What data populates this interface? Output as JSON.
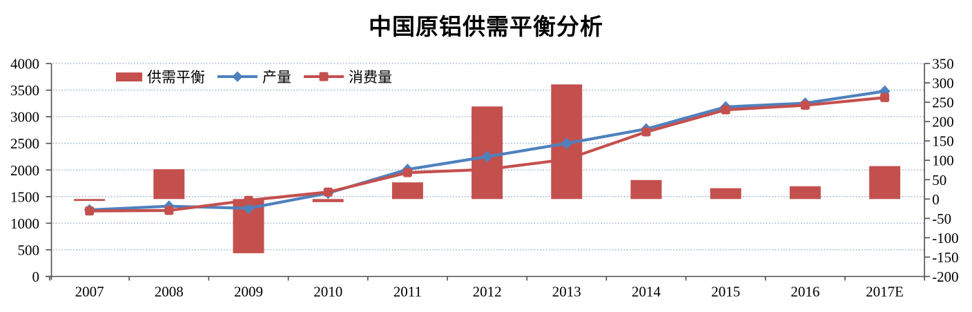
{
  "chart_data": {
    "type": "bar+line combo",
    "title": "中国原铝供需平衡分析",
    "categories": [
      "2007",
      "2008",
      "2009",
      "2010",
      "2011",
      "2012",
      "2013",
      "2014",
      "2015",
      "2016",
      "2017E"
    ],
    "series": [
      {
        "name": "供需平衡",
        "type": "bar",
        "axis": "right",
        "marker": "rect",
        "values": [
          -5,
          77,
          -140,
          -8,
          43,
          239,
          296,
          49,
          28,
          33,
          85
        ]
      },
      {
        "name": "产量",
        "type": "line",
        "axis": "left",
        "marker": "diamond",
        "values": [
          1250,
          1320,
          1280,
          1565,
          2010,
          2250,
          2500,
          2770,
          3185,
          3255,
          3480
        ]
      },
      {
        "name": "消费量",
        "type": "line",
        "axis": "left",
        "marker": "square",
        "values": [
          1230,
          1240,
          1430,
          1585,
          1950,
          2010,
          2200,
          2715,
          3130,
          3215,
          3360
        ]
      }
    ],
    "y_left": {
      "min": 0,
      "max": 4000,
      "step": 500,
      "ticks": [
        0,
        500,
        1000,
        1500,
        2000,
        2500,
        3000,
        3500,
        4000
      ]
    },
    "y_right": {
      "min": -200,
      "max": 350,
      "step": 50,
      "ticks": [
        -200,
        -150,
        -100,
        -50,
        0,
        50,
        100,
        150,
        200,
        250,
        300,
        350
      ]
    },
    "grid": {
      "horizontal": "dotted",
      "source_axis": "left"
    },
    "legend_position": "inside-top-left"
  },
  "colors": {
    "red": "#C4504E",
    "blue": "#4F81BD",
    "grid": "#A3B6CE",
    "axis": "#4D4D4D",
    "text": "#000000",
    "background": "#FFFFFF"
  }
}
